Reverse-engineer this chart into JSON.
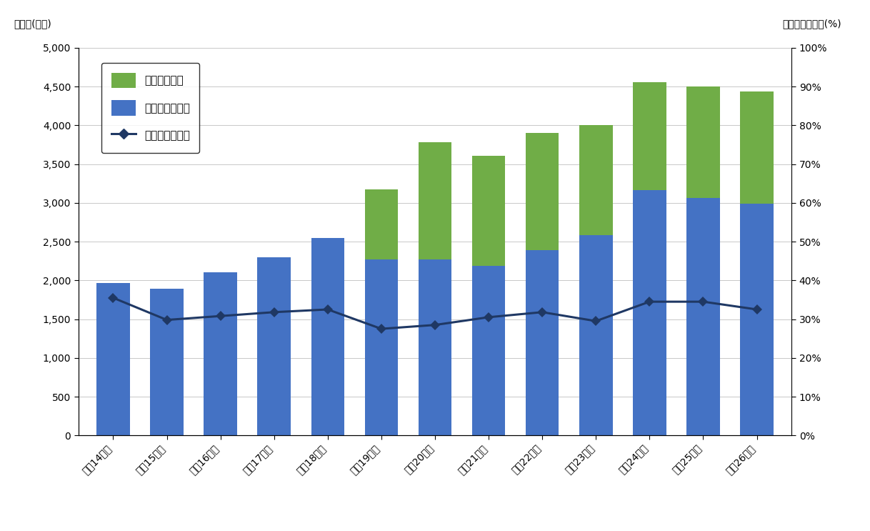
{
  "categories": [
    "平成14年度",
    "平成15年度",
    "平成16年度",
    "平成17年度",
    "平成18年度",
    "平成19年度",
    "平成20年度",
    "平成21年度",
    "平成22年度",
    "平成23年度",
    "平成24年度",
    "平成25年度",
    "平成26年度"
  ],
  "blue_values": [
    1970,
    1890,
    2100,
    2300,
    2550,
    2270,
    2270,
    2190,
    2390,
    2580,
    3160,
    3060,
    2990
  ],
  "green_values": [
    0,
    0,
    0,
    0,
    0,
    900,
    1510,
    1420,
    1510,
    1420,
    1400,
    1440,
    1450
  ],
  "rate_values": [
    35.5,
    29.8,
    30.8,
    31.8,
    32.5,
    27.5,
    28.5,
    30.5,
    31.8,
    29.5,
    34.5,
    34.5,
    32.5
  ],
  "bar_blue_color": "#4472C4",
  "bar_green_color": "#70AD47",
  "line_color": "#1F3864",
  "ylabel_left": "回収量(トン)",
  "ylabel_right": "廃棄時等回収率(%)",
  "ylim_left": [
    0,
    5000
  ],
  "ylim_right": [
    0,
    100
  ],
  "yticks_left": [
    0,
    500,
    1000,
    1500,
    2000,
    2500,
    3000,
    3500,
    4000,
    4500,
    5000
  ],
  "yticks_right": [
    0,
    10,
    20,
    30,
    40,
    50,
    60,
    70,
    80,
    90,
    100
  ],
  "legend_labels": [
    "整備時回収量",
    "廃棄時等回収量",
    "廃棄時等回収率"
  ],
  "background_color": "#FFFFFF",
  "grid_color": "#C8C8C8",
  "font_size_ticks": 10,
  "font_size_legend": 11,
  "font_size_label": 10
}
